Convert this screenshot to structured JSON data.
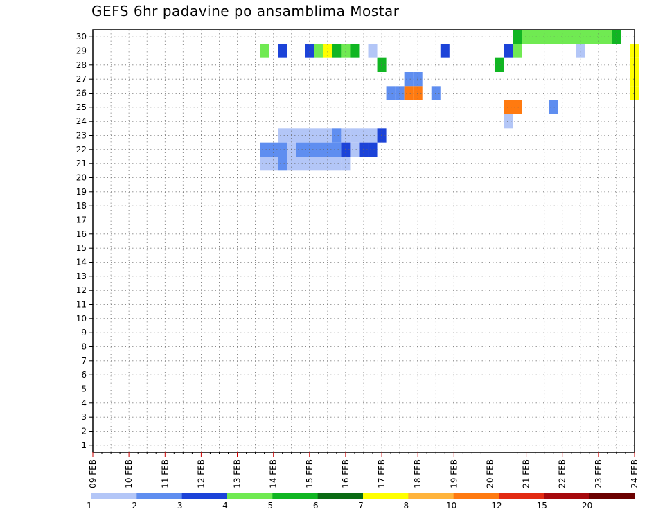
{
  "chart_data": {
    "type": "heatmap",
    "title": "GEFS 6hr padavine po ansamblima Mostar",
    "xlabel": "",
    "ylabel": "",
    "x_ticks": [
      "09 FEB",
      "10 FEB",
      "11 FEB",
      "12 FEB",
      "13 FEB",
      "14 FEB",
      "15 FEB",
      "16 FEB",
      "17 FEB",
      "18 FEB",
      "19 FEB",
      "20 FEB",
      "21 FEB",
      "22 FEB",
      "23 FEB",
      "24 FEB"
    ],
    "y_ticks": [
      1,
      2,
      3,
      4,
      5,
      6,
      7,
      8,
      9,
      10,
      11,
      12,
      13,
      14,
      15,
      16,
      17,
      18,
      19,
      20,
      21,
      22,
      23,
      24,
      25,
      26,
      27,
      28,
      29,
      30
    ],
    "time_steps": 61,
    "members": 30,
    "grid": true,
    "colorbar": {
      "labels": [
        "1",
        "2",
        "3",
        "4",
        "5",
        "6",
        "7",
        "8",
        "10",
        "12",
        "15",
        "20"
      ],
      "colors": [
        "#b3c6f7",
        "#5f8ef0",
        "#1c43d8",
        "#70ea52",
        "#10b622",
        "#0a6b14",
        "#ffff00",
        "#ffb43c",
        "#ff7a10",
        "#e22a12",
        "#a6080c",
        "#6b0000"
      ]
    },
    "rows": [
      [
        [
          47,
          4
        ],
        [
          48,
          3
        ],
        [
          49,
          3
        ],
        [
          50,
          3
        ],
        [
          51,
          3
        ],
        [
          52,
          3
        ],
        [
          53,
          3
        ],
        [
          54,
          3
        ],
        [
          55,
          3
        ],
        [
          56,
          3
        ],
        [
          57,
          3
        ],
        [
          58,
          4
        ]
      ],
      [
        [
          19,
          3
        ],
        [
          21,
          2
        ],
        [
          24,
          2
        ],
        [
          25,
          3
        ],
        [
          26,
          6
        ],
        [
          27,
          4
        ],
        [
          28,
          3
        ],
        [
          29,
          4
        ],
        [
          31,
          0
        ],
        [
          39,
          2
        ],
        [
          46,
          2
        ],
        [
          47,
          3
        ],
        [
          54,
          0
        ],
        [
          60,
          6
        ]
      ],
      [
        [
          32,
          4
        ],
        [
          45,
          4
        ],
        [
          60,
          6
        ]
      ],
      [
        [
          35,
          1
        ],
        [
          36,
          1
        ],
        [
          60,
          6
        ]
      ],
      [
        [
          33,
          1
        ],
        [
          34,
          1
        ],
        [
          35,
          8
        ],
        [
          36,
          8
        ],
        [
          38,
          1
        ],
        [
          60,
          6
        ]
      ],
      [
        [
          46,
          8
        ],
        [
          47,
          8
        ],
        [
          51,
          1
        ]
      ],
      [
        [
          46,
          0
        ]
      ],
      [
        [
          21,
          0
        ],
        [
          22,
          0
        ],
        [
          23,
          0
        ],
        [
          24,
          0
        ],
        [
          25,
          0
        ],
        [
          26,
          0
        ],
        [
          27,
          1
        ],
        [
          28,
          0
        ],
        [
          29,
          0
        ],
        [
          30,
          0
        ],
        [
          31,
          0
        ],
        [
          32,
          2
        ]
      ],
      [
        [
          19,
          1
        ],
        [
          20,
          1
        ],
        [
          21,
          1
        ],
        [
          22,
          0
        ],
        [
          23,
          1
        ],
        [
          24,
          1
        ],
        [
          25,
          1
        ],
        [
          26,
          1
        ],
        [
          27,
          1
        ],
        [
          28,
          2
        ],
        [
          29,
          0
        ],
        [
          30,
          2
        ],
        [
          31,
          2
        ]
      ],
      [
        [
          19,
          0
        ],
        [
          20,
          0
        ],
        [
          21,
          1
        ],
        [
          22,
          0
        ],
        [
          23,
          0
        ],
        [
          24,
          0
        ],
        [
          25,
          0
        ],
        [
          26,
          0
        ],
        [
          27,
          0
        ],
        [
          28,
          0
        ]
      ]
    ]
  }
}
